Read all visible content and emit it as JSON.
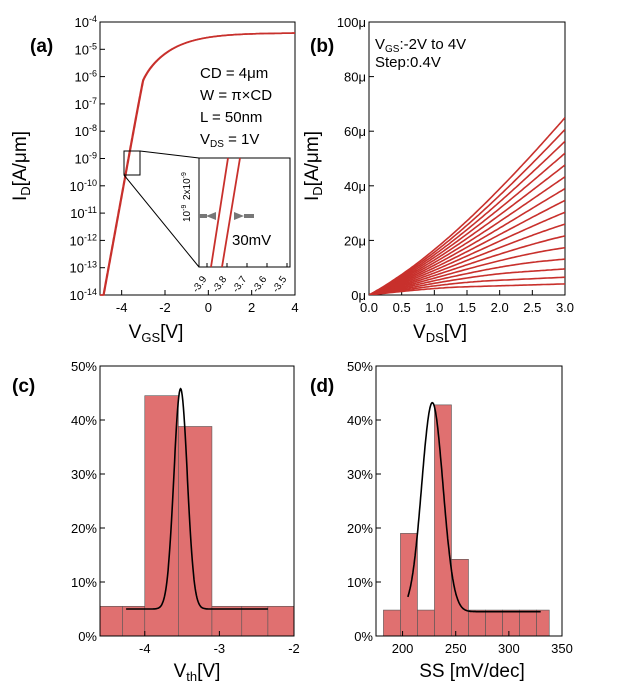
{
  "chart_data": [
    {
      "panel": "(a)",
      "type": "line",
      "xlabel": "V",
      "xlabel_sub": "GS",
      "xlabel_unit": "[V]",
      "ylabel": "I",
      "ylabel_sub": "D",
      "ylabel_unit": "[A/μm]",
      "xlim": [
        -5,
        4
      ],
      "xticks": [
        "-4",
        "-2",
        "0",
        "2",
        "4"
      ],
      "ylim_log": [
        -14,
        -4
      ],
      "yticks": [
        "10^-14",
        "10^-13",
        "10^-12",
        "10^-11",
        "10^-10",
        "10^-9",
        "10^-8",
        "10^-7",
        "10^-6",
        "10^-5",
        "10^-4"
      ],
      "annotations": [
        "CD = 4μm",
        "W = π×CD",
        "L = 50nm"
      ],
      "vds_ann": {
        "main": "V",
        "sub": "DS",
        "rest": " = 1V"
      },
      "color": "#c8302c",
      "inset": {
        "xticks": [
          "-3.9",
          "-3.8",
          "-3.7",
          "-3.6",
          "-3.5"
        ],
        "ytick_top": "2x10^-9",
        "ytick_mid": "10^-9",
        "label": "30mV"
      }
    },
    {
      "panel": "(b)",
      "type": "line",
      "xlabel": "V",
      "xlabel_sub": "DS",
      "xlabel_unit": "[V]",
      "ylabel": "I",
      "ylabel_sub": "D",
      "ylabel_unit": "[A/μm]",
      "xlim": [
        0,
        3
      ],
      "xticks": [
        "0.0",
        "0.5",
        "1.0",
        "1.5",
        "2.0",
        "2.5",
        "3.0"
      ],
      "ylim": [
        0,
        100
      ],
      "yticks": [
        "0μ",
        "20μ",
        "40μ",
        "60μ",
        "80μ",
        "100μ"
      ],
      "legend": {
        "line1_pre": "V",
        "line1_sub": "GS",
        "line1_rest": ":-2V to 4V",
        "line2": "Step:0.4V"
      },
      "vgs_start": -2,
      "vgs_step": 0.4,
      "n_curves": 16,
      "color": "#c8302c"
    },
    {
      "panel": "(c)",
      "type": "bar",
      "xlabel": "V",
      "xlabel_sub": "th",
      "xlabel_unit": "[V]",
      "xlim": [
        -4.6,
        -2
      ],
      "xticks": [
        "-4",
        "-3",
        "-2"
      ],
      "ylim": [
        0,
        50
      ],
      "yticks": [
        "0%",
        "10%",
        "20%",
        "30%",
        "40%",
        "50%"
      ],
      "bins": [
        {
          "x0": -4.6,
          "x1": -4.3,
          "value": 5.5
        },
        {
          "x0": -4.3,
          "x1": -4.0,
          "value": 5.5
        },
        {
          "x0": -4.0,
          "x1": -3.55,
          "value": 44.5
        },
        {
          "x0": -3.55,
          "x1": -3.1,
          "value": 38.8
        },
        {
          "x0": -3.1,
          "x1": -2.7,
          "value": 5.5
        },
        {
          "x0": -2.7,
          "x1": -2.35,
          "value": 5.5
        },
        {
          "x0": -2.35,
          "x1": -2.0,
          "value": 5.5
        }
      ],
      "fit": {
        "mean": -3.52,
        "sigma": 0.09,
        "base": 5.0,
        "peak": 45.8,
        "x_range": [
          -4.25,
          -2.35
        ]
      },
      "bar_color": "#e07070"
    },
    {
      "panel": "(d)",
      "type": "bar",
      "xlabel": "SS [mV/dec]",
      "xlim": [
        175,
        350
      ],
      "xticks": [
        "200",
        "250",
        "300",
        "350"
      ],
      "ylim": [
        0,
        50
      ],
      "yticks": [
        "0%",
        "10%",
        "20%",
        "30%",
        "40%",
        "50%"
      ],
      "bins": [
        {
          "x0": 182,
          "x1": 198,
          "value": 4.8
        },
        {
          "x0": 198,
          "x1": 214,
          "value": 19.0
        },
        {
          "x0": 214,
          "x1": 230,
          "value": 4.8
        },
        {
          "x0": 230,
          "x1": 246,
          "value": 42.8
        },
        {
          "x0": 246,
          "x1": 262,
          "value": 14.2
        },
        {
          "x0": 262,
          "x1": 278,
          "value": 4.8
        },
        {
          "x0": 278,
          "x1": 294,
          "value": 4.8
        },
        {
          "x0": 294,
          "x1": 310,
          "value": 4.8
        },
        {
          "x0": 310,
          "x1": 326,
          "value": 4.8
        },
        {
          "x0": 326,
          "x1": 338,
          "value": 4.8
        }
      ],
      "fit": {
        "mean": 228,
        "sigma": 10,
        "base": 4.5,
        "peak": 43.2,
        "x_range": [
          205,
          330
        ]
      },
      "bar_color": "#e07070"
    }
  ]
}
